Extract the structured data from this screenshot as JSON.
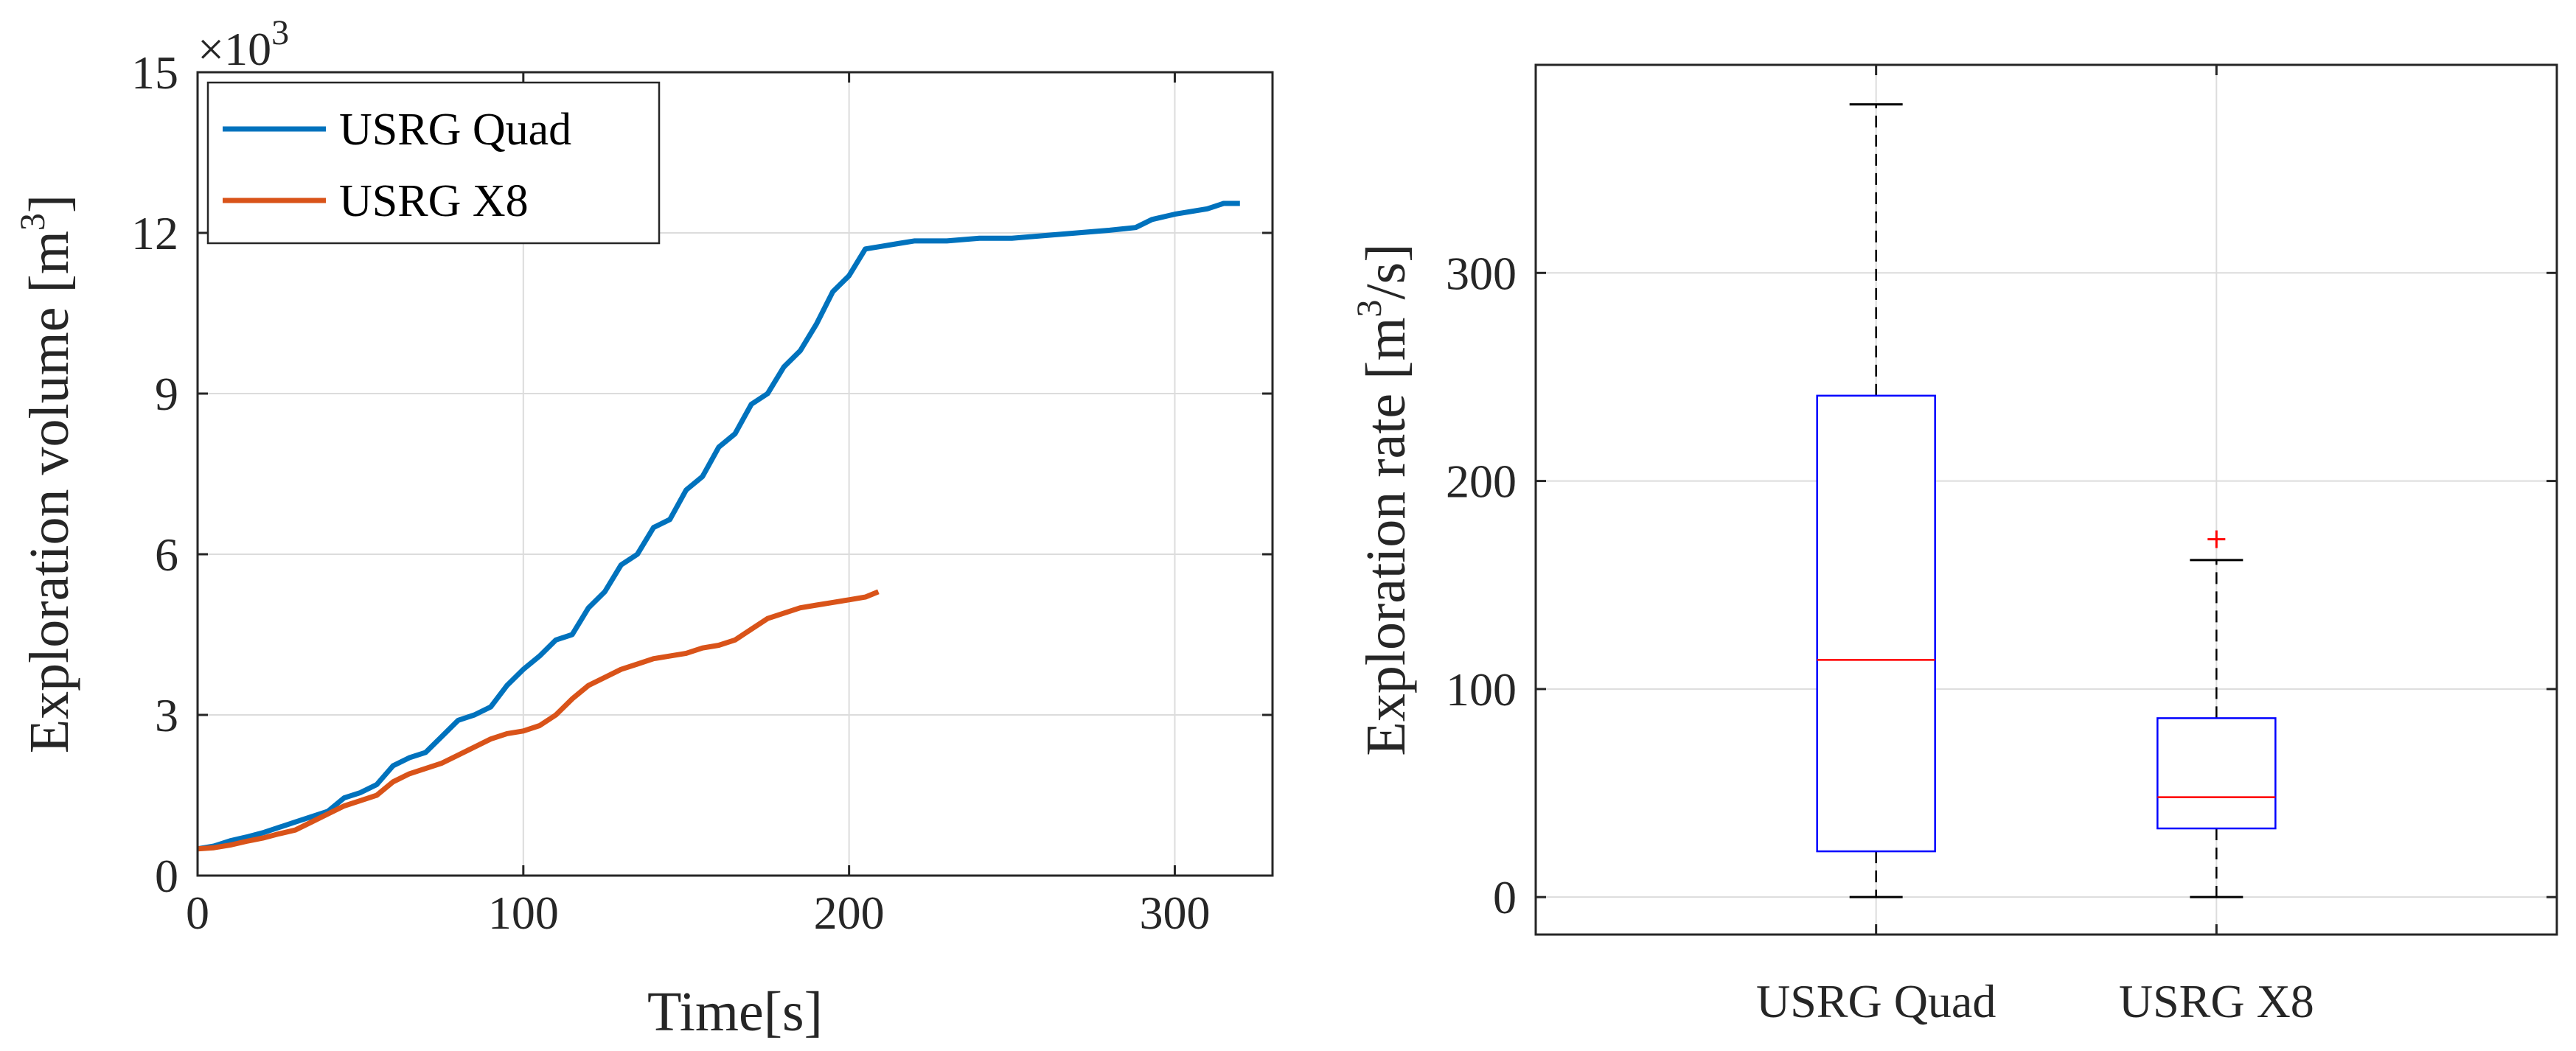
{
  "chart_data": [
    {
      "type": "line",
      "ylabel_text": "Exploration volume [m",
      "ylabel_sup": "3",
      "ylabel_end": "]",
      "xlabel": "Time[s]",
      "multiplier_prefix": "×10",
      "multiplier_sup": "3",
      "xlim": [
        0,
        330
      ],
      "ylim": [
        0,
        15
      ],
      "xticks": [
        0,
        100,
        200,
        300
      ],
      "yticks": [
        0,
        3,
        6,
        9,
        12,
        15
      ],
      "grid": true,
      "legend_position": "top-left",
      "series": [
        {
          "name": "USRG Quad",
          "color": "#0072BD",
          "x": [
            0,
            5,
            10,
            15,
            20,
            25,
            30,
            35,
            40,
            45,
            50,
            55,
            60,
            65,
            70,
            75,
            80,
            85,
            90,
            95,
            100,
            105,
            110,
            115,
            120,
            125,
            130,
            135,
            140,
            145,
            150,
            155,
            160,
            165,
            170,
            175,
            180,
            185,
            190,
            195,
            200,
            205,
            210,
            215,
            220,
            230,
            240,
            250,
            260,
            270,
            280,
            288,
            293,
            300,
            310,
            315,
            320
          ],
          "y": [
            0.5,
            0.55,
            0.65,
            0.72,
            0.8,
            0.9,
            1.0,
            1.1,
            1.2,
            1.45,
            1.55,
            1.7,
            2.05,
            2.2,
            2.3,
            2.6,
            2.9,
            3.0,
            3.15,
            3.55,
            3.85,
            4.1,
            4.4,
            4.5,
            5.0,
            5.3,
            5.8,
            6.0,
            6.5,
            6.65,
            7.2,
            7.45,
            8.0,
            8.25,
            8.8,
            9.0,
            9.5,
            9.8,
            10.3,
            10.9,
            11.2,
            11.7,
            11.75,
            11.8,
            11.85,
            11.85,
            11.9,
            11.9,
            11.95,
            12.0,
            12.05,
            12.1,
            12.25,
            12.35,
            12.45,
            12.55,
            12.55
          ]
        },
        {
          "name": "USRG X8",
          "color": "#D95319",
          "x": [
            0,
            5,
            10,
            15,
            20,
            25,
            30,
            35,
            40,
            45,
            50,
            55,
            60,
            65,
            70,
            75,
            80,
            85,
            90,
            95,
            100,
            105,
            110,
            115,
            120,
            125,
            130,
            135,
            140,
            145,
            150,
            155,
            160,
            165,
            170,
            175,
            180,
            185,
            190,
            195,
            200,
            205,
            209
          ],
          "y": [
            0.5,
            0.52,
            0.57,
            0.64,
            0.7,
            0.78,
            0.85,
            1.0,
            1.15,
            1.3,
            1.4,
            1.5,
            1.75,
            1.9,
            2.0,
            2.1,
            2.25,
            2.4,
            2.55,
            2.65,
            2.7,
            2.8,
            3.0,
            3.3,
            3.55,
            3.7,
            3.85,
            3.95,
            4.05,
            4.1,
            4.15,
            4.25,
            4.3,
            4.4,
            4.6,
            4.8,
            4.9,
            5.0,
            5.05,
            5.1,
            5.15,
            5.2,
            5.3
          ]
        }
      ]
    },
    {
      "type": "box",
      "ylabel_text": "Exploration rate [m",
      "ylabel_sup": "3",
      "ylabel_end": "/s]",
      "xlabel": "",
      "ylim": [
        -18,
        400
      ],
      "yticks": [
        0,
        100,
        200,
        300
      ],
      "grid": true,
      "categories": [
        "USRG Quad",
        "USRG X8"
      ],
      "box_color": "#0000FF",
      "median_color": "#FF0000",
      "outlier_color": "#FF0000",
      "boxes": [
        {
          "category": "USRG Quad",
          "whisker_low": 0,
          "q1": 22,
          "median": 114,
          "q3": 241,
          "whisker_high": 381,
          "outliers": []
        },
        {
          "category": "USRG X8",
          "whisker_low": 0,
          "q1": 33,
          "median": 48,
          "q3": 86,
          "whisker_high": 162,
          "outliers": [
            172
          ]
        }
      ]
    }
  ]
}
